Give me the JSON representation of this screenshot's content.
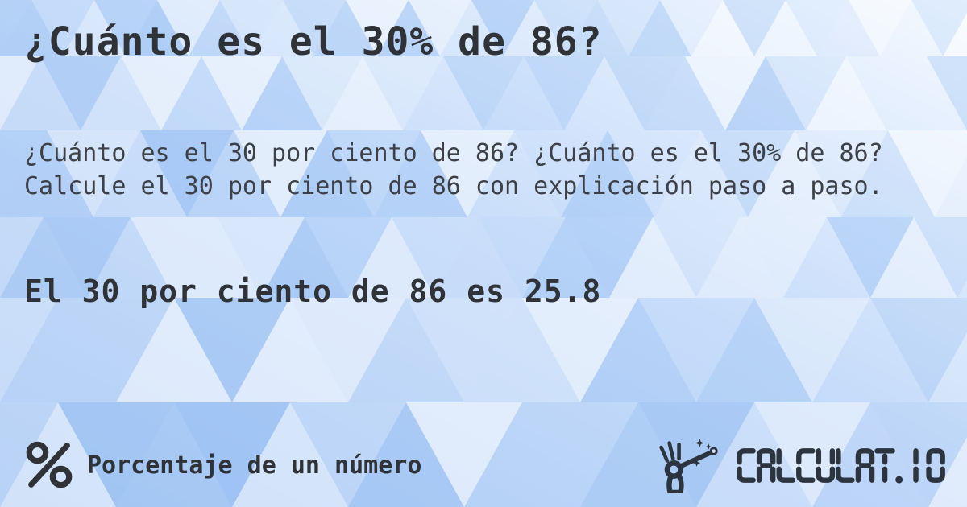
{
  "card": {
    "title": "¿Cuánto es el 30% de 86?",
    "description": "¿Cuánto es el 30 por ciento de 86? ¿Cuánto es el 30% de 86? Calcule el 30 por ciento de 86 con explicación paso a paso.",
    "answer": "El 30 por ciento de 86 es 25.8"
  },
  "footer": {
    "category": {
      "icon": "percent-icon",
      "label": "Porcentaje de un número"
    },
    "brand": {
      "icon": "magic-wand-hand-icon",
      "text": "CALCULAT.IO"
    }
  },
  "colors": {
    "text_primary": "#2f3338",
    "text_secondary": "#3d4147",
    "brand_dark": "#2c353f",
    "background_base": "#aecdf6",
    "background_tint": "#7fb0ef"
  }
}
